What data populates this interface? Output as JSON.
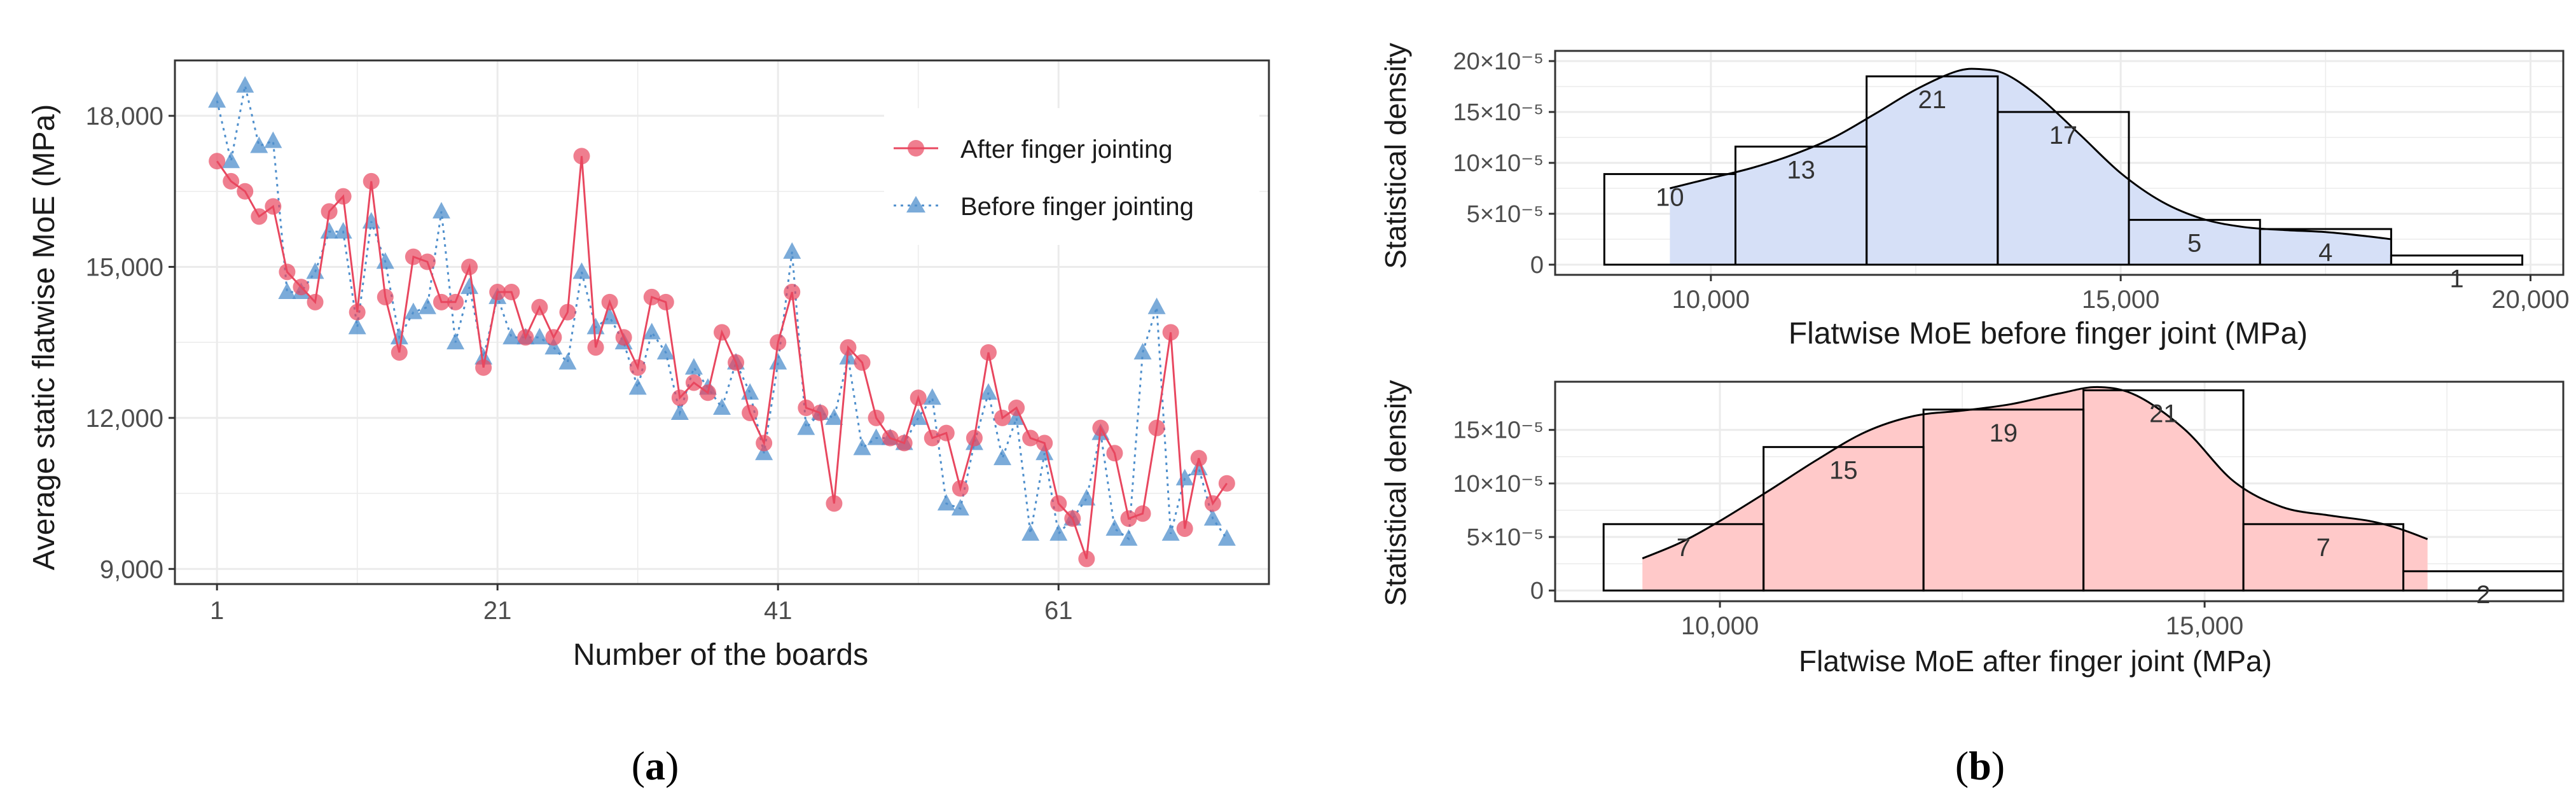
{
  "colors": {
    "after": "#e8475f",
    "before": "#4f8fcc",
    "hist_before_fill": "#d6e0f7",
    "hist_after_fill": "#ffc9c9",
    "grid": "#ebebeb",
    "panel_border": "#333333"
  },
  "panels": {
    "a": {
      "caption_letter": "a",
      "caption_open": "(",
      "caption_close": ")"
    },
    "b": {
      "caption_letter": "b",
      "caption_open": "(",
      "caption_close": ")"
    }
  },
  "chart_data": [
    {
      "type": "line",
      "id": "a",
      "xlabel": "Number of the boards",
      "ylabel": "Average static flatwise MoE (MPa)",
      "xlim": [
        -2,
        76
      ],
      "ylim": [
        8700,
        19100
      ],
      "x_ticks": [
        1,
        21,
        41,
        61
      ],
      "x_tick_labels": [
        "1",
        "21",
        "41",
        "61"
      ],
      "y_ticks": [
        9000,
        12000,
        15000,
        18000
      ],
      "y_tick_labels": [
        "9,000",
        "12,000",
        "15,000",
        "18,000"
      ],
      "grid": true,
      "legend": {
        "placement": "top-right"
      },
      "series": [
        {
          "name": "After finger jointing",
          "marker": "circle",
          "line_style": "solid",
          "color": "#e8475f",
          "x": [
            1,
            2,
            3,
            4,
            5,
            6,
            7,
            8,
            9,
            10,
            11,
            12,
            13,
            14,
            15,
            16,
            17,
            18,
            19,
            20,
            21,
            22,
            23,
            24,
            25,
            26,
            27,
            28,
            29,
            30,
            31,
            32,
            33,
            34,
            35,
            36,
            37,
            38,
            39,
            40,
            41,
            42,
            43,
            44,
            45,
            46,
            47,
            48,
            49,
            50,
            51,
            52,
            53,
            54,
            55,
            56,
            57,
            58,
            59,
            60,
            61,
            62,
            63,
            64,
            65,
            66,
            67,
            68,
            69,
            70,
            71,
            72,
            73
          ],
          "values": [
            17100,
            16700,
            16500,
            16000,
            16200,
            14900,
            14600,
            14300,
            16100,
            16400,
            14100,
            16700,
            14400,
            13300,
            15200,
            15100,
            14300,
            14300,
            15000,
            13000,
            14500,
            14500,
            13600,
            14200,
            13600,
            14100,
            17200,
            13400,
            14300,
            13600,
            13000,
            14400,
            14300,
            12400,
            12700,
            12500,
            13700,
            13100,
            12100,
            11500,
            13500,
            14500,
            12200,
            12100,
            10300,
            13400,
            13100,
            12000,
            11600,
            11500,
            12400,
            11600,
            11700,
            10600,
            11600,
            13300,
            12000,
            12200,
            11600,
            11500,
            10300,
            10000,
            9200,
            11800,
            11300,
            10000,
            10100,
            11800,
            13700,
            9800,
            11200,
            10300,
            10700
          ]
        },
        {
          "name": "Before finger jointing",
          "marker": "triangle",
          "line_style": "dotted",
          "color": "#4f8fcc",
          "x": [
            1,
            2,
            3,
            4,
            5,
            6,
            7,
            8,
            9,
            10,
            11,
            12,
            13,
            14,
            15,
            16,
            17,
            18,
            19,
            20,
            21,
            22,
            23,
            24,
            25,
            26,
            27,
            28,
            29,
            30,
            31,
            32,
            33,
            34,
            35,
            36,
            37,
            38,
            39,
            40,
            41,
            42,
            43,
            44,
            45,
            46,
            47,
            48,
            49,
            50,
            51,
            52,
            53,
            54,
            55,
            56,
            57,
            58,
            59,
            60,
            61,
            62,
            63,
            64,
            65,
            66,
            67,
            68,
            69,
            70,
            71,
            72,
            73
          ],
          "values": [
            18300,
            17100,
            18600,
            17400,
            17500,
            14500,
            14500,
            14900,
            15700,
            15700,
            13800,
            15900,
            15100,
            13600,
            14100,
            14200,
            16100,
            13500,
            14600,
            13200,
            14400,
            13600,
            13600,
            13600,
            13400,
            13100,
            14900,
            13800,
            14000,
            13500,
            12600,
            13700,
            13300,
            12100,
            13000,
            12600,
            12200,
            13100,
            12500,
            11300,
            13100,
            15300,
            11800,
            12100,
            12000,
            13200,
            11400,
            11600,
            11600,
            11500,
            12000,
            12400,
            10300,
            10200,
            11500,
            12500,
            11200,
            12000,
            9700,
            11300,
            9700,
            10000,
            10400,
            11700,
            9800,
            9600,
            13300,
            14200,
            9700,
            10800,
            11000,
            10000,
            9600
          ]
        }
      ]
    },
    {
      "type": "bar",
      "id": "b-top",
      "subtype": "histogram",
      "xlabel": "Flatwise MoE before finger joint (MPa)",
      "ylabel": "Statistical density",
      "xlim": [
        8100,
        20400
      ],
      "ylim": [
        -1e-05,
        0.00021
      ],
      "x_ticks": [
        10000,
        15000,
        20000
      ],
      "x_tick_labels": [
        "10,000",
        "15,000",
        "20,000"
      ],
      "y_ticks": [
        0,
        5e-05,
        0.0001,
        0.00015,
        0.0002
      ],
      "y_tick_labels": [
        "0",
        "5×10⁻⁵",
        "10×10⁻⁵",
        "15×10⁻⁵",
        "20×10⁻⁵"
      ],
      "bins": [
        {
          "from": 8700,
          "to": 10300,
          "count": "10",
          "density": 8.9e-05
        },
        {
          "from": 10300,
          "to": 11900,
          "count": "13",
          "density": 0.000116
        },
        {
          "from": 11900,
          "to": 13500,
          "count": "21",
          "density": 0.000185
        },
        {
          "from": 13500,
          "to": 15100,
          "count": "17",
          "density": 0.00015
        },
        {
          "from": 15100,
          "to": 16700,
          "count": "5",
          "density": 4.4e-05
        },
        {
          "from": 16700,
          "to": 18300,
          "count": "4",
          "density": 3.5e-05
        },
        {
          "from": 18300,
          "to": 19900,
          "count": "1",
          "density": 9e-06
        }
      ],
      "density_curve": {
        "x": [
          9500,
          10000,
          10500,
          11000,
          11500,
          12000,
          12500,
          13000,
          13300,
          13600,
          14000,
          14500,
          15000,
          15500,
          16000,
          16500,
          17000,
          17500,
          18000,
          18300
        ],
        "y": [
          7.5e-05,
          8.5e-05,
          9.5e-05,
          0.000108,
          0.000125,
          0.000148,
          0.000172,
          0.00019,
          0.000192,
          0.000187,
          0.000165,
          0.000128,
          9e-05,
          6.2e-05,
          4.5e-05,
          3.7e-05,
          3.4e-05,
          3.2e-05,
          2.8e-05,
          2.5e-05
        ]
      },
      "grid": true
    },
    {
      "type": "bar",
      "id": "b-bottom",
      "subtype": "histogram",
      "xlabel": "Flatwise MoE after finger joint (MPa)",
      "ylabel": "Statistical density",
      "xlim": [
        8300,
        18700
      ],
      "ylim": [
        -1e-05,
        0.000195
      ],
      "x_ticks": [
        10000,
        15000
      ],
      "x_tick_labels": [
        "10,000",
        "15,000"
      ],
      "y_ticks": [
        0,
        5e-05,
        0.0001,
        0.00015
      ],
      "y_tick_labels": [
        "0",
        "5×10⁻⁵",
        "10×10⁻⁵",
        "15×10⁻⁵"
      ],
      "bins": [
        {
          "from": 8800,
          "to": 10450,
          "count": "7",
          "density": 6.2e-05
        },
        {
          "from": 10450,
          "to": 12100,
          "count": "15",
          "density": 0.000134
        },
        {
          "from": 12100,
          "to": 13750,
          "count": "19",
          "density": 0.000169
        },
        {
          "from": 13750,
          "to": 15400,
          "count": "21",
          "density": 0.000187
        },
        {
          "from": 15400,
          "to": 17050,
          "count": "7",
          "density": 6.2e-05
        },
        {
          "from": 17050,
          "to": 18700,
          "count": "2",
          "density": 1.8e-05
        }
      ],
      "density_curve": {
        "x": [
          9200,
          9600,
          10000,
          10500,
          11000,
          11500,
          12000,
          12500,
          13000,
          13500,
          13900,
          14300,
          14800,
          15300,
          15800,
          16300,
          16700,
          17000,
          17300
        ],
        "y": [
          3e-05,
          4.5e-05,
          6.5e-05,
          9.3e-05,
          0.000122,
          0.000148,
          0.000163,
          0.000168,
          0.000174,
          0.000184,
          0.00019,
          0.000182,
          0.00015,
          0.000102,
          7.8e-05,
          7e-05,
          6.5e-05,
          5.8e-05,
          4.8e-05
        ]
      },
      "grid": true
    }
  ]
}
